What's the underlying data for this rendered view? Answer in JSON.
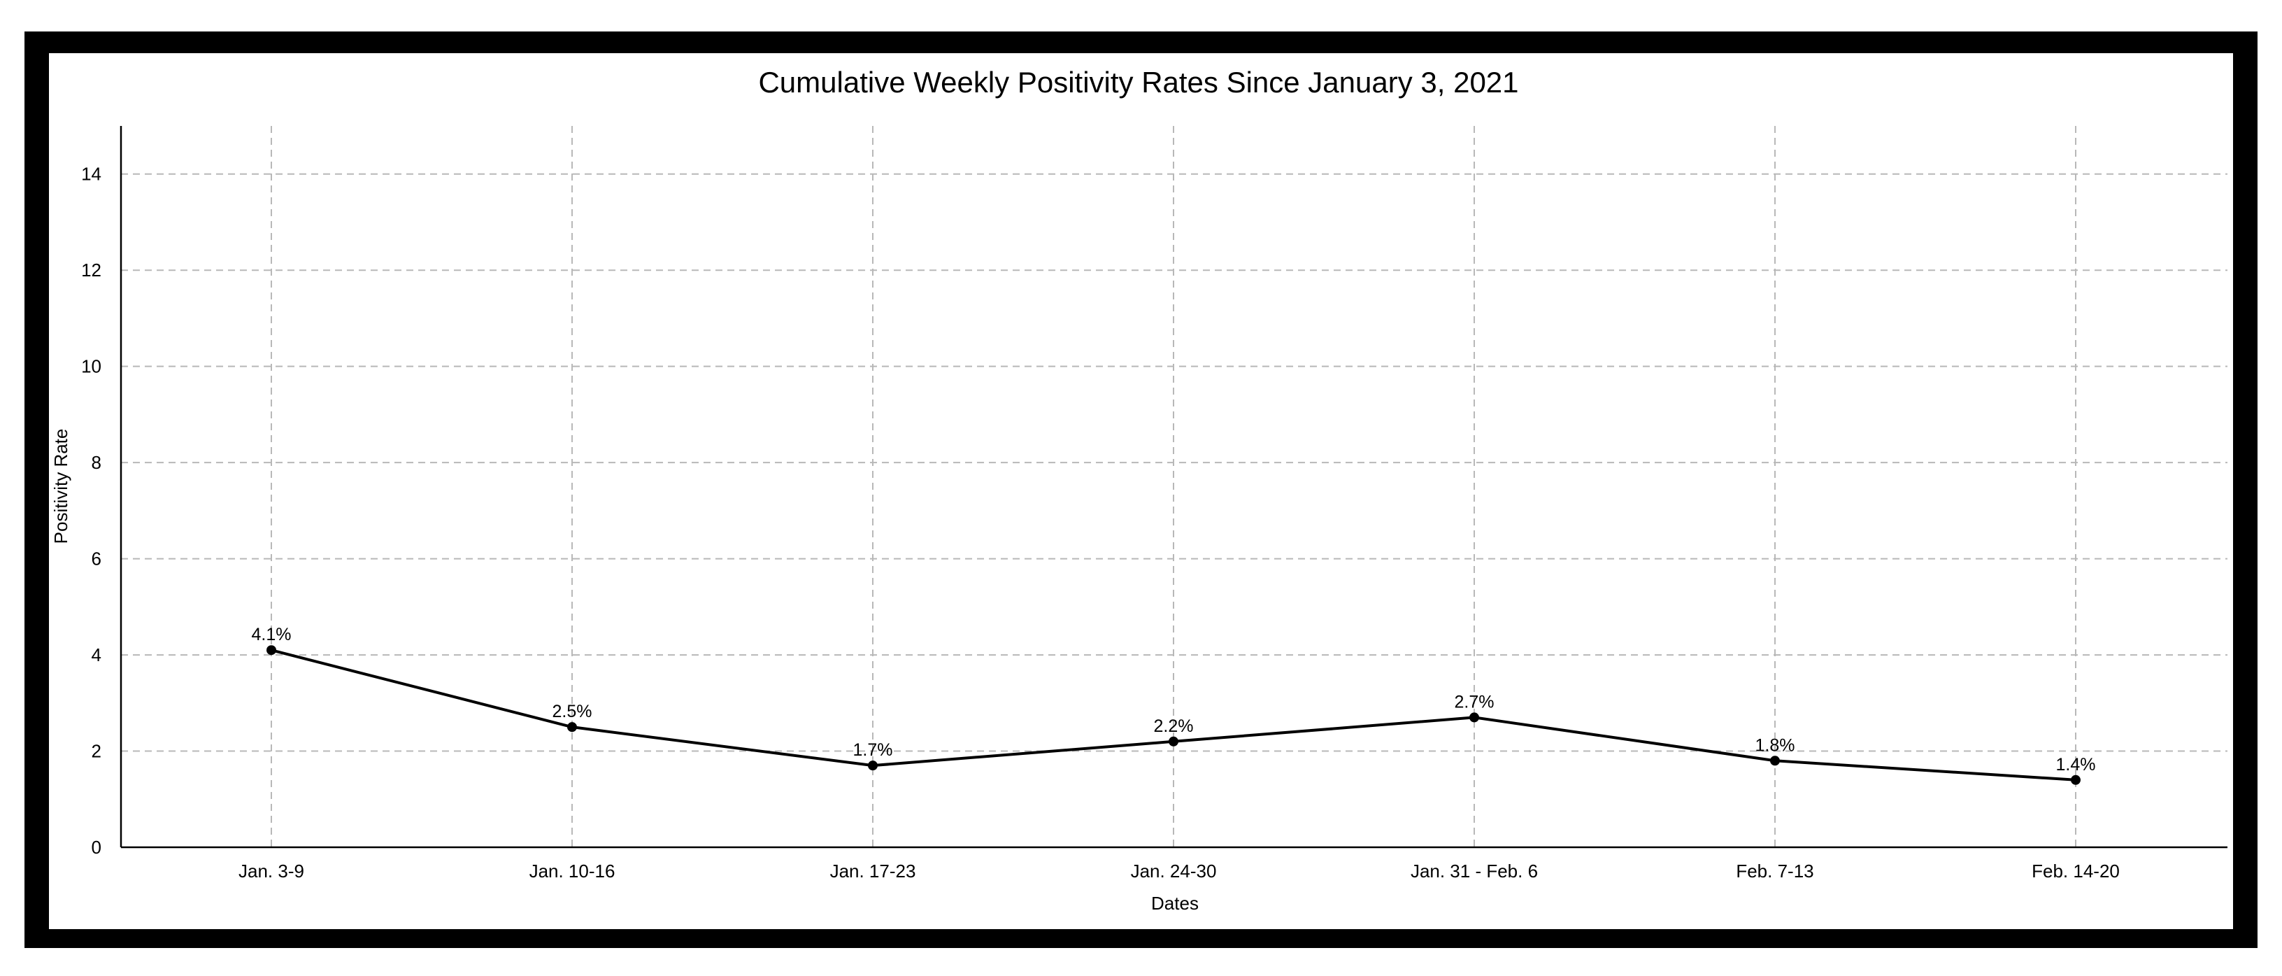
{
  "chart_data": {
    "type": "line",
    "title": "Cumulative Weekly Positivity Rates Since January 3, 2021",
    "xlabel": "Dates",
    "ylabel": "Positivity Rate",
    "categories": [
      "Jan. 3-9",
      "Jan. 10-16",
      "Jan. 17-23",
      "Jan. 24-30",
      "Jan. 31 - Feb. 6",
      "Feb. 7-13",
      "Feb. 14-20"
    ],
    "series": [
      {
        "values": [
          4.1,
          2.5,
          1.7,
          2.2,
          2.7,
          1.8,
          1.4
        ],
        "labels": [
          "4.1%",
          "2.5%",
          "1.7%",
          "2.2%",
          "2.7%",
          "1.8%",
          "1.4%"
        ]
      }
    ],
    "ylim": [
      0,
      15
    ],
    "yticks": [
      0,
      2,
      4,
      6,
      8,
      10,
      12,
      14
    ],
    "grid": true,
    "frame_color": "#000000",
    "line_color": "#000000",
    "grid_color": "#b8b8b8"
  }
}
